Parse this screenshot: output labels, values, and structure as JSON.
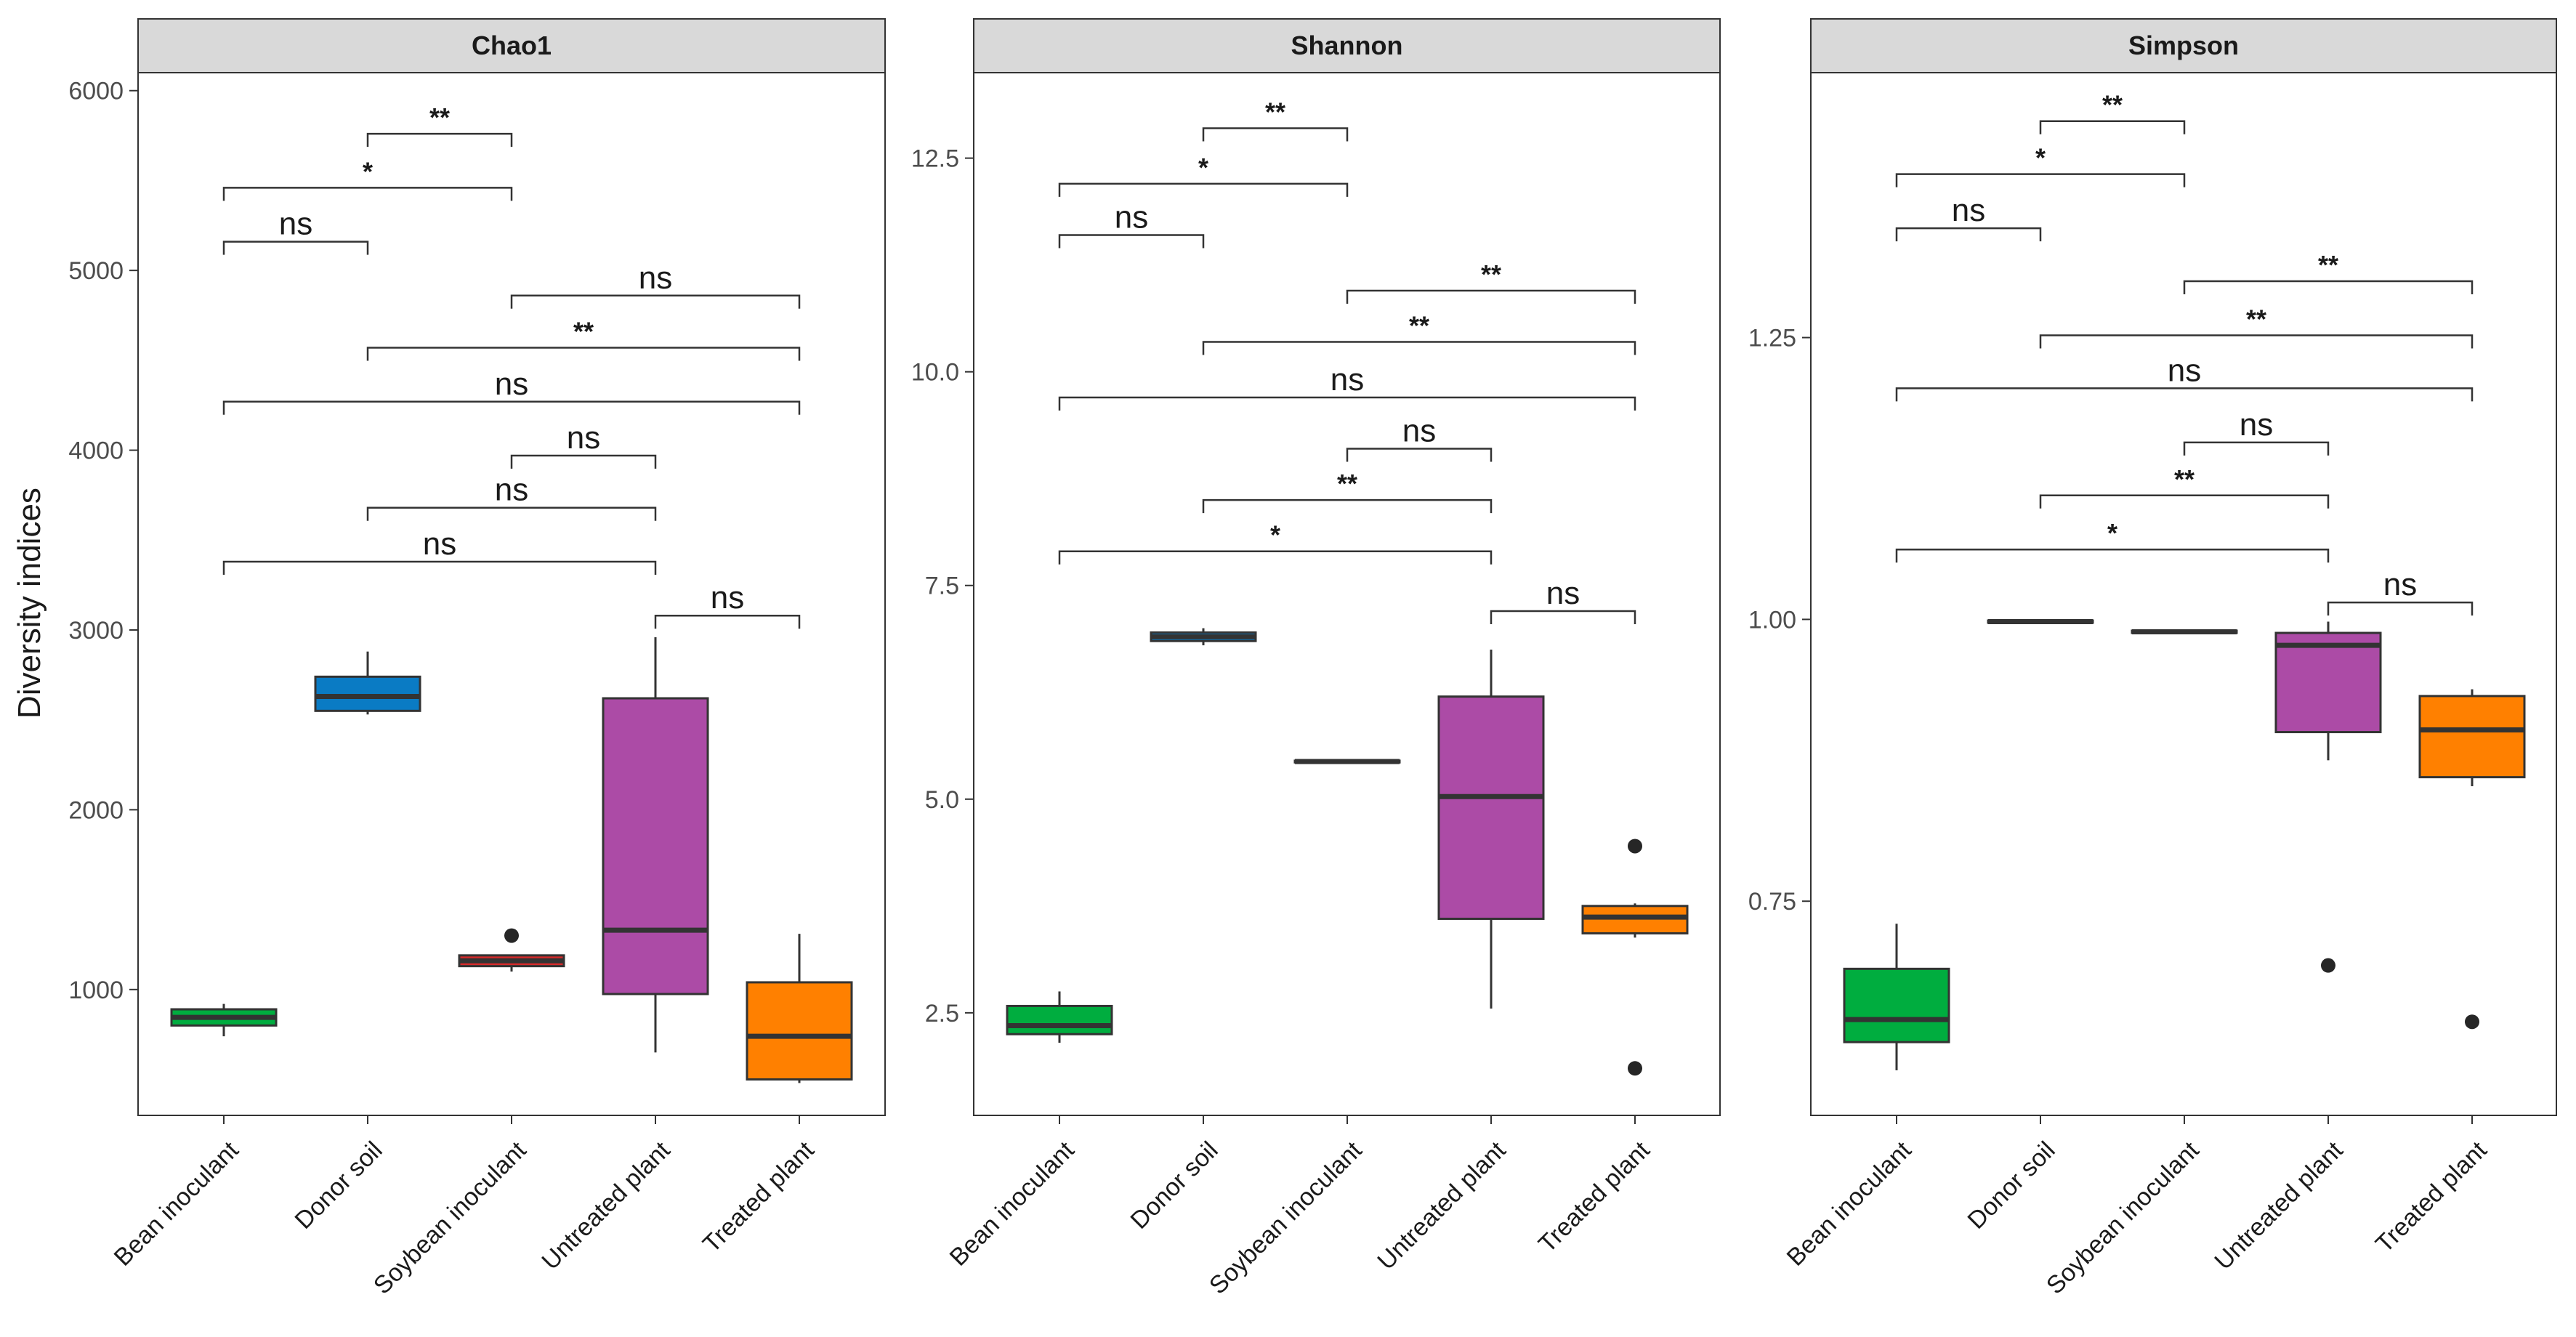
{
  "chart_data": {
    "type": "box",
    "ylabel": "Diversity indices",
    "categories": [
      "Bean inoculant",
      "Donor soil",
      "Soybean inoculant",
      "Untreated plant",
      "Treated plant"
    ],
    "colors": {
      "Bean inoculant": "#00ad3f",
      "Donor soil": "#0a7bc4",
      "Soybean inoculant": "#d62a2a",
      "Untreated plant": "#ac4ba6",
      "Treated plant": "#ff8000"
    },
    "panels": [
      {
        "title": "Chao1",
        "ylim": [
          300,
          6100
        ],
        "yticks": [
          1000,
          2000,
          3000,
          4000,
          5000,
          6000
        ],
        "ytick_labels": [
          "1000",
          "2000",
          "3000",
          "4000",
          "5000",
          "6000"
        ],
        "boxes": [
          {
            "category": "Bean inoculant",
            "q1": 800,
            "median": 845,
            "q3": 890,
            "whisker_low": 740,
            "whisker_high": 920,
            "outliers": []
          },
          {
            "category": "Donor soil",
            "q1": 2550,
            "median": 2630,
            "q3": 2740,
            "whisker_low": 2530,
            "whisker_high": 2880,
            "outliers": []
          },
          {
            "category": "Soybean inoculant",
            "q1": 1130,
            "median": 1160,
            "q3": 1190,
            "whisker_low": 1100,
            "whisker_high": 1190,
            "outliers": [
              1300
            ]
          },
          {
            "category": "Untreated plant",
            "q1": 975,
            "median": 1330,
            "q3": 2620,
            "whisker_low": 650,
            "whisker_high": 2960,
            "outliers": []
          },
          {
            "category": "Treated plant",
            "q1": 500,
            "median": 740,
            "q3": 1040,
            "whisker_low": 480,
            "whisker_high": 1310,
            "outliers": []
          }
        ],
        "comparisons": [
          {
            "from": "Untreated plant",
            "to": "Treated plant",
            "y": 3080,
            "label": "ns"
          },
          {
            "from": "Bean inoculant",
            "to": "Untreated plant",
            "y": 3380,
            "label": "ns"
          },
          {
            "from": "Donor soil",
            "to": "Untreated plant",
            "y": 3680,
            "label": "ns"
          },
          {
            "from": "Soybean inoculant",
            "to": "Untreated plant",
            "y": 3970,
            "label": "ns"
          },
          {
            "from": "Bean inoculant",
            "to": "Treated plant",
            "y": 4270,
            "label": "ns"
          },
          {
            "from": "Donor soil",
            "to": "Treated plant",
            "y": 4570,
            "label": "**"
          },
          {
            "from": "Soybean inoculant",
            "to": "Treated plant",
            "y": 4860,
            "label": "ns"
          },
          {
            "from": "Bean inoculant",
            "to": "Donor soil",
            "y": 5160,
            "label": "ns"
          },
          {
            "from": "Bean inoculant",
            "to": "Soybean inoculant",
            "y": 5460,
            "label": "*"
          },
          {
            "from": "Donor soil",
            "to": "Soybean inoculant",
            "y": 5760,
            "label": "**"
          }
        ]
      },
      {
        "title": "Shannon",
        "ylim": [
          1.3,
          13.5
        ],
        "yticks": [
          2.5,
          5.0,
          7.5,
          10.0,
          12.5
        ],
        "ytick_labels": [
          "2.5",
          "5.0",
          "7.5",
          "10.0",
          "12.5"
        ],
        "boxes": [
          {
            "category": "Bean inoculant",
            "q1": 2.25,
            "median": 2.35,
            "q3": 2.58,
            "whisker_low": 2.15,
            "whisker_high": 2.75,
            "outliers": []
          },
          {
            "category": "Donor soil",
            "q1": 6.85,
            "median": 6.9,
            "q3": 6.95,
            "whisker_low": 6.8,
            "whisker_high": 7.0,
            "outliers": []
          },
          {
            "category": "Soybean inoculant",
            "q1": 5.43,
            "median": 5.44,
            "q3": 5.45,
            "whisker_low": 5.43,
            "whisker_high": 5.45,
            "outliers": []
          },
          {
            "category": "Untreated plant",
            "q1": 3.6,
            "median": 5.03,
            "q3": 6.2,
            "whisker_low": 2.55,
            "whisker_high": 6.75,
            "outliers": []
          },
          {
            "category": "Treated plant",
            "q1": 3.43,
            "median": 3.62,
            "q3": 3.75,
            "whisker_low": 3.38,
            "whisker_high": 3.78,
            "outliers": [
              4.45,
              1.85
            ]
          }
        ],
        "comparisons": [
          {
            "from": "Untreated plant",
            "to": "Treated plant",
            "y": 7.2,
            "label": "ns"
          },
          {
            "from": "Bean inoculant",
            "to": "Untreated plant",
            "y": 7.9,
            "label": "*"
          },
          {
            "from": "Donor soil",
            "to": "Untreated plant",
            "y": 8.5,
            "label": "**"
          },
          {
            "from": "Soybean inoculant",
            "to": "Untreated plant",
            "y": 9.1,
            "label": "ns"
          },
          {
            "from": "Bean inoculant",
            "to": "Treated plant",
            "y": 9.7,
            "label": "ns"
          },
          {
            "from": "Donor soil",
            "to": "Treated plant",
            "y": 10.35,
            "label": "**"
          },
          {
            "from": "Soybean inoculant",
            "to": "Treated plant",
            "y": 10.95,
            "label": "**"
          },
          {
            "from": "Bean inoculant",
            "to": "Donor soil",
            "y": 11.6,
            "label": "ns"
          },
          {
            "from": "Bean inoculant",
            "to": "Soybean inoculant",
            "y": 12.2,
            "label": "*"
          },
          {
            "from": "Donor soil",
            "to": "Soybean inoculant",
            "y": 12.85,
            "label": "**"
          }
        ]
      },
      {
        "title": "Simpson",
        "ylim": [
          0.56,
          1.485
        ],
        "yticks": [
          0.75,
          1.0,
          1.25
        ],
        "ytick_labels": [
          "0.75",
          "1.00",
          "1.25"
        ],
        "boxes": [
          {
            "category": "Bean inoculant",
            "q1": 0.625,
            "median": 0.645,
            "q3": 0.69,
            "whisker_low": 0.6,
            "whisker_high": 0.73,
            "outliers": []
          },
          {
            "category": "Donor soil",
            "q1": 0.997,
            "median": 0.998,
            "q3": 0.999,
            "whisker_low": 0.997,
            "whisker_high": 0.999,
            "outliers": []
          },
          {
            "category": "Soybean inoculant",
            "q1": 0.988,
            "median": 0.989,
            "q3": 0.99,
            "whisker_low": 0.988,
            "whisker_high": 0.99,
            "outliers": []
          },
          {
            "category": "Untreated plant",
            "q1": 0.9,
            "median": 0.977,
            "q3": 0.988,
            "whisker_low": 0.875,
            "whisker_high": 0.998,
            "outliers": [
              0.693
            ]
          },
          {
            "category": "Treated plant",
            "q1": 0.86,
            "median": 0.902,
            "q3": 0.932,
            "whisker_low": 0.852,
            "whisker_high": 0.938,
            "outliers": [
              0.643
            ]
          }
        ],
        "comparisons": [
          {
            "from": "Untreated plant",
            "to": "Treated plant",
            "y": 1.015,
            "label": "ns"
          },
          {
            "from": "Bean inoculant",
            "to": "Untreated plant",
            "y": 1.062,
            "label": "*"
          },
          {
            "from": "Donor soil",
            "to": "Untreated plant",
            "y": 1.11,
            "label": "**"
          },
          {
            "from": "Soybean inoculant",
            "to": "Untreated plant",
            "y": 1.157,
            "label": "ns"
          },
          {
            "from": "Bean inoculant",
            "to": "Treated plant",
            "y": 1.205,
            "label": "ns"
          },
          {
            "from": "Donor soil",
            "to": "Treated plant",
            "y": 1.252,
            "label": "**"
          },
          {
            "from": "Soybean inoculant",
            "to": "Treated plant",
            "y": 1.3,
            "label": "**"
          },
          {
            "from": "Bean inoculant",
            "to": "Donor soil",
            "y": 1.347,
            "label": "ns"
          },
          {
            "from": "Bean inoculant",
            "to": "Soybean inoculant",
            "y": 1.395,
            "label": "*"
          },
          {
            "from": "Donor soil",
            "to": "Soybean inoculant",
            "y": 1.442,
            "label": "**"
          }
        ]
      }
    ]
  }
}
